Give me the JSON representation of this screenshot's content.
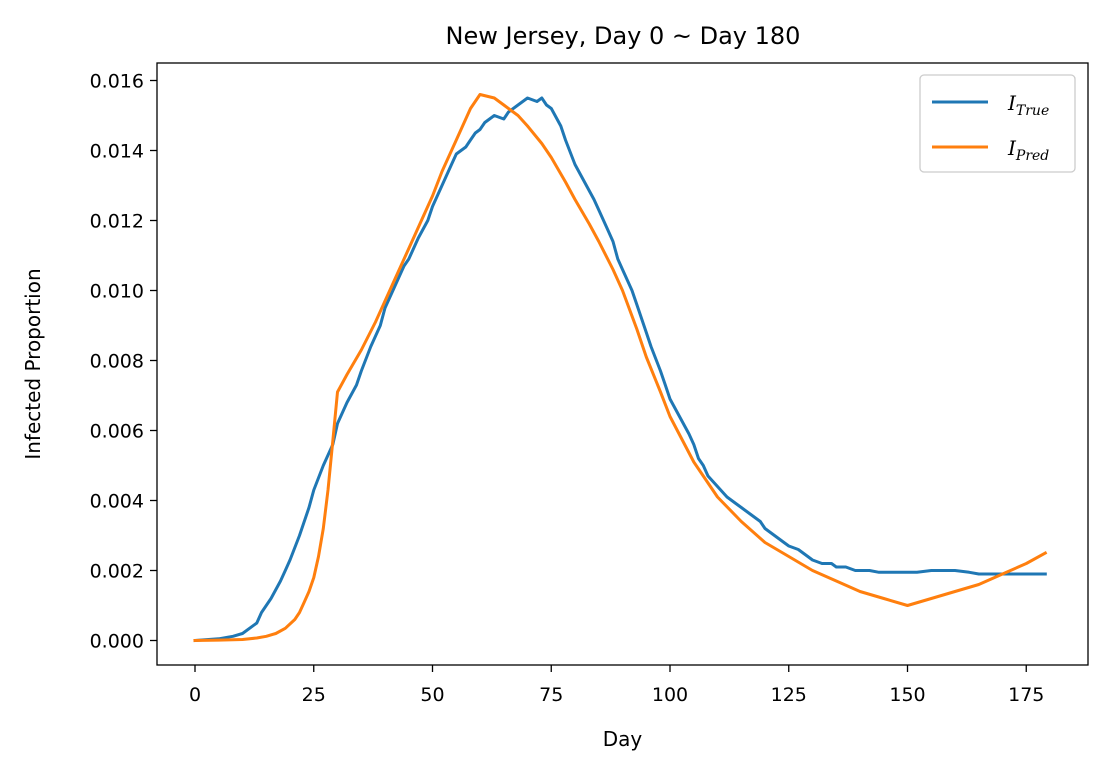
{
  "chart_data": {
    "type": "line",
    "title": "New Jersey, Day 0 ~ Day 180",
    "xlabel": "Day",
    "ylabel": "Infected Proportion",
    "xlim": [
      -8,
      188
    ],
    "ylim": [
      -0.0007,
      0.0165
    ],
    "x_ticks": [
      0,
      25,
      50,
      75,
      100,
      125,
      150,
      175
    ],
    "x_tick_labels": [
      "0",
      "25",
      "50",
      "75",
      "100",
      "125",
      "150",
      "175"
    ],
    "y_ticks": [
      0.0,
      0.002,
      0.004,
      0.006,
      0.008,
      0.01,
      0.012,
      0.014,
      0.016
    ],
    "y_tick_labels": [
      "0.000",
      "0.002",
      "0.004",
      "0.006",
      "0.008",
      "0.010",
      "0.012",
      "0.014",
      "0.016"
    ],
    "grid": false,
    "legend_position": "top-right",
    "series": [
      {
        "name": "I_True",
        "legend_main": "I",
        "legend_sub": "True",
        "color": "#1f77b4",
        "x": [
          0,
          5,
          8,
          10,
          13,
          14,
          16,
          18,
          19,
          20,
          22,
          24,
          25,
          27,
          29,
          30,
          32,
          34,
          35,
          37,
          39,
          40,
          42,
          44,
          45,
          47,
          49,
          50,
          52,
          54,
          55,
          57,
          58,
          59,
          60,
          61,
          63,
          65,
          66,
          68,
          70,
          72,
          73,
          74,
          75,
          77,
          78,
          80,
          82,
          84,
          85,
          87,
          88,
          89,
          90,
          92,
          93,
          95,
          96,
          98,
          99,
          100,
          102,
          104,
          105,
          106,
          107,
          108,
          110,
          112,
          114,
          115,
          117,
          119,
          120,
          122,
          124,
          125,
          127,
          129,
          130,
          132,
          134,
          135,
          137,
          139,
          140,
          142,
          144,
          145,
          148,
          150,
          152,
          155,
          157,
          160,
          163,
          165,
          168,
          170,
          173,
          175,
          177,
          179
        ],
        "y": [
          0.0,
          5e-05,
          0.00012,
          0.0002,
          0.0005,
          0.0008,
          0.0012,
          0.0017,
          0.002,
          0.0023,
          0.003,
          0.0038,
          0.0043,
          0.005,
          0.0056,
          0.0062,
          0.0068,
          0.0073,
          0.0077,
          0.0084,
          0.009,
          0.0095,
          0.0101,
          0.0107,
          0.0109,
          0.0115,
          0.012,
          0.0124,
          0.013,
          0.0136,
          0.0139,
          0.0141,
          0.0143,
          0.0145,
          0.0146,
          0.0148,
          0.015,
          0.0149,
          0.0151,
          0.0153,
          0.0155,
          0.0154,
          0.0155,
          0.0153,
          0.0152,
          0.0147,
          0.0143,
          0.0136,
          0.0131,
          0.0126,
          0.0123,
          0.0117,
          0.0114,
          0.0109,
          0.0106,
          0.01,
          0.0096,
          0.0088,
          0.0084,
          0.0077,
          0.0073,
          0.0069,
          0.0064,
          0.0059,
          0.0056,
          0.0052,
          0.005,
          0.0047,
          0.0044,
          0.0041,
          0.0039,
          0.0038,
          0.0036,
          0.0034,
          0.0032,
          0.003,
          0.0028,
          0.0027,
          0.0026,
          0.0024,
          0.0023,
          0.0022,
          0.0022,
          0.0021,
          0.0021,
          0.002,
          0.002,
          0.002,
          0.00195,
          0.00195,
          0.00195,
          0.00195,
          0.00195,
          0.002,
          0.002,
          0.002,
          0.00195,
          0.0019,
          0.0019,
          0.0019,
          0.0019,
          0.0019,
          0.0019,
          0.0019
        ]
      },
      {
        "name": "I_Pred",
        "legend_main": "I",
        "legend_sub": "Pred",
        "color": "#ff7f0e",
        "x": [
          0,
          5,
          10,
          13,
          15,
          17,
          19,
          21,
          22,
          23,
          24,
          25,
          26,
          27,
          28,
          29,
          30,
          32,
          35,
          38,
          40,
          42,
          45,
          48,
          50,
          52,
          55,
          58,
          60,
          63,
          65,
          68,
          70,
          73,
          75,
          78,
          80,
          83,
          85,
          88,
          90,
          93,
          95,
          98,
          100,
          105,
          110,
          115,
          120,
          125,
          130,
          135,
          140,
          145,
          150,
          155,
          160,
          165,
          170,
          175,
          179
        ],
        "y": [
          0.0,
          1e-05,
          3e-05,
          7e-05,
          0.00012,
          0.0002,
          0.00035,
          0.0006,
          0.0008,
          0.0011,
          0.0014,
          0.0018,
          0.0024,
          0.0032,
          0.0043,
          0.0057,
          0.0071,
          0.0076,
          0.0083,
          0.0091,
          0.0097,
          0.0103,
          0.0112,
          0.0121,
          0.0127,
          0.0134,
          0.0143,
          0.0152,
          0.0156,
          0.0155,
          0.0153,
          0.015,
          0.0147,
          0.0142,
          0.0138,
          0.0131,
          0.0126,
          0.0119,
          0.0114,
          0.0106,
          0.01,
          0.0089,
          0.0081,
          0.0071,
          0.0064,
          0.0051,
          0.0041,
          0.0034,
          0.0028,
          0.0024,
          0.002,
          0.0017,
          0.0014,
          0.0012,
          0.001,
          0.0012,
          0.0014,
          0.0016,
          0.0019,
          0.0022,
          0.0025
        ]
      }
    ]
  }
}
